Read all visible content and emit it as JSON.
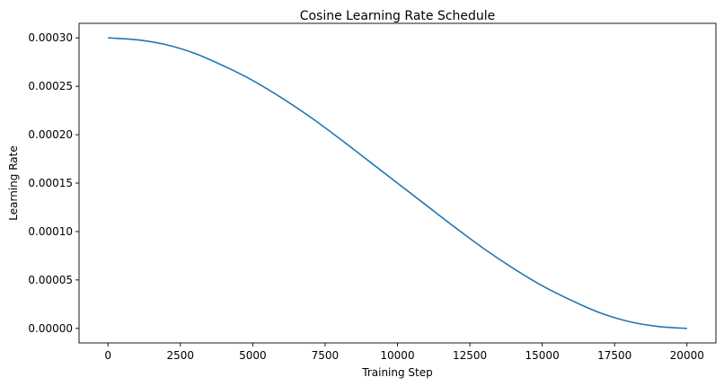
{
  "chart_data": {
    "type": "line",
    "title": "Cosine Learning Rate Schedule",
    "xlabel": "Training Step",
    "ylabel": "Learning Rate",
    "xlim": [
      -1000,
      21000
    ],
    "ylim": [
      -1.5e-05,
      0.000315
    ],
    "xticks": [
      0,
      2500,
      5000,
      7500,
      10000,
      12500,
      15000,
      17500,
      20000
    ],
    "xtick_labels": [
      "0",
      "2500",
      "5000",
      "7500",
      "10000",
      "12500",
      "15000",
      "17500",
      "20000"
    ],
    "yticks": [
      0.0,
      5e-05,
      0.0001,
      0.00015,
      0.0002,
      0.00025,
      0.0003
    ],
    "ytick_labels": [
      "0.00000",
      "0.00005",
      "0.00010",
      "0.00015",
      "0.00020",
      "0.00025",
      "0.00030"
    ],
    "grid": false,
    "series": [
      {
        "color": "#1f77b4",
        "x": [
          0,
          1000,
          2000,
          3000,
          4000,
          5000,
          6000,
          7000,
          8000,
          9000,
          10000,
          11000,
          12000,
          13000,
          14000,
          15000,
          16000,
          17000,
          18000,
          19000,
          20000
        ],
        "y": [
          0.0003,
          0.000298,
          0.000293,
          0.000284,
          0.000271,
          0.000256,
          0.000238,
          0.000218,
          0.000196,
          0.000173,
          0.00015,
          0.000127,
          0.000104,
          8.2e-05,
          6.2e-05,
          4.4e-05,
          2.9e-05,
          1.6e-05,
          7e-06,
          2e-06,
          0.0
        ]
      }
    ]
  }
}
